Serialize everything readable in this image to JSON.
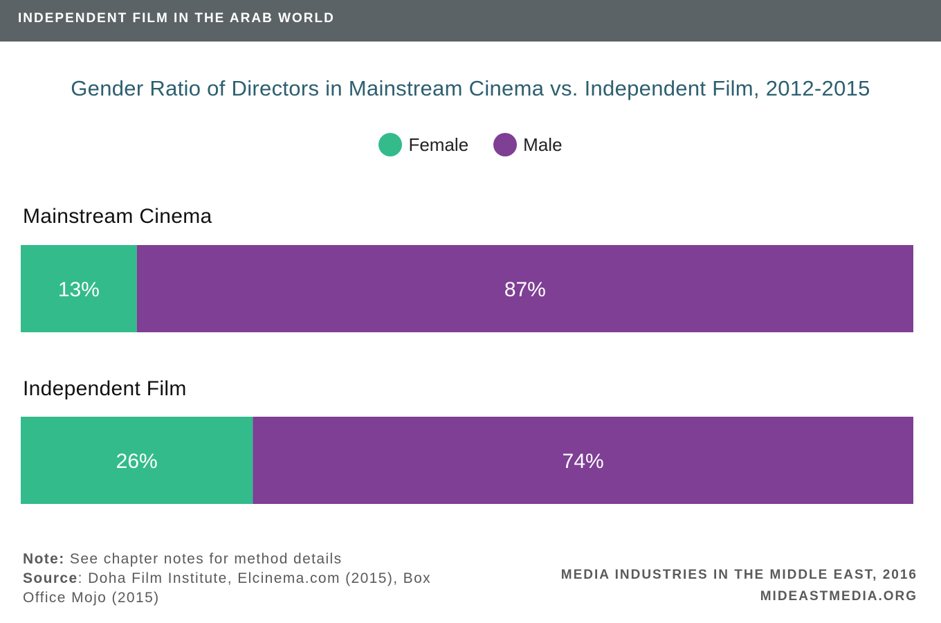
{
  "header": {
    "banner": "INDEPENDENT FILM IN THE ARAB WORLD"
  },
  "chart_data": {
    "type": "bar",
    "orientation": "horizontal-stacked-100",
    "title": "Gender Ratio of Directors in Mainstream Cinema vs. Independent Film, 2012-2015",
    "categories": [
      "Mainstream Cinema",
      "Independent Film"
    ],
    "series": [
      {
        "name": "Female",
        "values": [
          13,
          26
        ],
        "labels": [
          "13%",
          "26%"
        ],
        "color": "#33bb8c"
      },
      {
        "name": "Male",
        "values": [
          87,
          74
        ],
        "labels": [
          "87%",
          "74%"
        ],
        "color": "#7e3f94"
      }
    ],
    "xlim": [
      0,
      100
    ],
    "legend_position": "top-center",
    "grid": false
  },
  "footer": {
    "note_label": "Note:",
    "note_text": " See chapter notes for method details",
    "source_label": "Source",
    "source_text": ": Doha Film Institute, Elcinema.com (2015), Box Office Mojo (2015)",
    "publication": "MEDIA INDUSTRIES IN THE MIDDLE EAST, 2016",
    "website": "MIDEASTMEDIA.ORG"
  }
}
